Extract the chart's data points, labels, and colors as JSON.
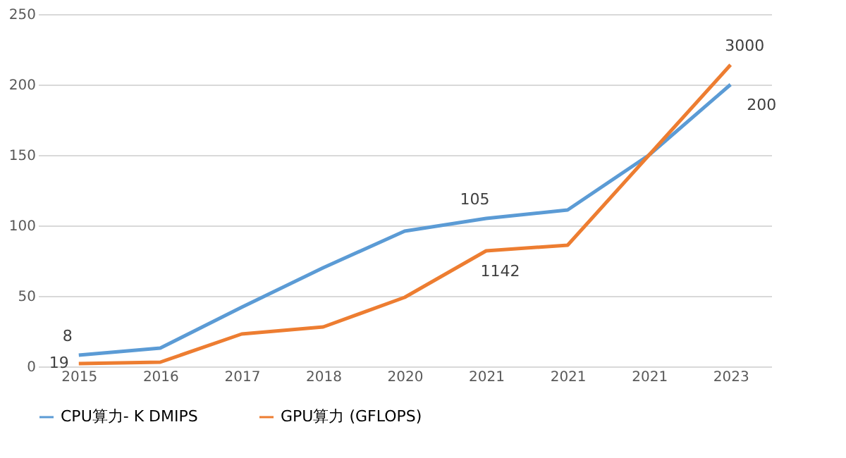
{
  "chart_data": {
    "type": "line",
    "categories": [
      "2015",
      "2016",
      "2017",
      "2018",
      "2020",
      "2021",
      "2021",
      "2021",
      "2023"
    ],
    "series": [
      {
        "name": "CPU算力- K DMIPS",
        "color": "#5b9bd5",
        "values": [
          8,
          13,
          42,
          70,
          96,
          105,
          111,
          150,
          200
        ],
        "value_labels": [
          "8",
          null,
          null,
          null,
          null,
          "105",
          null,
          null,
          "200"
        ]
      },
      {
        "name": "GPU算力 (GFLOPS)",
        "color": "#ed7d31",
        "values": [
          2,
          3,
          23,
          28,
          49,
          82,
          86,
          150,
          214
        ]
      }
    ],
    "annotations": [
      {
        "text": "19",
        "x": "2015",
        "y": 2
      },
      {
        "text": "1142",
        "x": "2021",
        "y": 82
      },
      {
        "text": "3000",
        "x": "2023",
        "y": 214
      }
    ],
    "ylim": [
      0,
      250
    ],
    "yticks": [
      0,
      50,
      100,
      150,
      200,
      250
    ],
    "grid": "y",
    "legend": "bottom",
    "marker": "none",
    "line_style": "solid"
  }
}
